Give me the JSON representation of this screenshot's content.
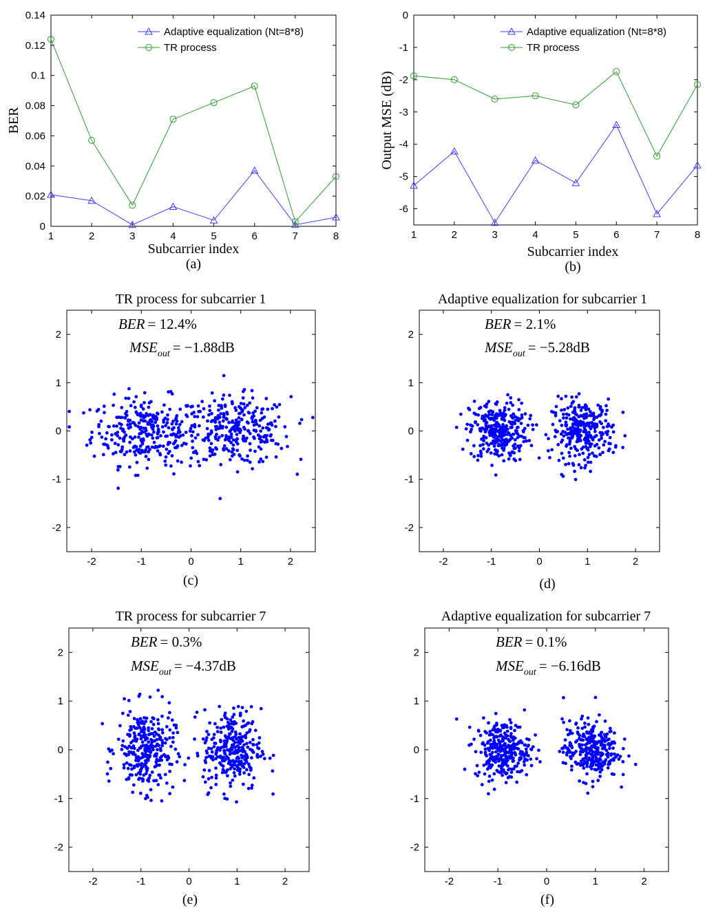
{
  "chart_data": [
    {
      "id": "a",
      "type": "line",
      "panel_label": "(a)",
      "xlabel": "Subcarrier index",
      "ylabel": "BER",
      "xlim": [
        1,
        8
      ],
      "ylim": [
        0,
        0.14
      ],
      "xticks": [
        "1",
        "2",
        "3",
        "4",
        "5",
        "6",
        "7",
        "8"
      ],
      "yticks": [
        "0",
        "0.02",
        "0.04",
        "0.06",
        "0.08",
        "0.1",
        "0.12",
        "0.14"
      ],
      "x": [
        1,
        2,
        3,
        4,
        5,
        6,
        7,
        8
      ],
      "legend_position": "top-right",
      "series": [
        {
          "name": "Adaptive equalization (Nt=8*8)",
          "color": "#3c3cff",
          "marker": "triangle",
          "values": [
            0.021,
            0.017,
            0.001,
            0.013,
            0.004,
            0.037,
            0.001,
            0.006
          ]
        },
        {
          "name": "TR process",
          "color": "#2e9a2e",
          "marker": "circle",
          "values": [
            0.124,
            0.057,
            0.014,
            0.071,
            0.082,
            0.093,
            0.003,
            0.033
          ]
        }
      ]
    },
    {
      "id": "b",
      "type": "line",
      "panel_label": "(b)",
      "xlabel": "Subcarrier index",
      "ylabel": "Output MSE (dB)",
      "xlim": [
        1,
        8
      ],
      "ylim": [
        -6.5,
        0
      ],
      "xticks": [
        "1",
        "2",
        "3",
        "4",
        "5",
        "6",
        "7",
        "8"
      ],
      "yticks": [
        "0",
        "-1",
        "-2",
        "-3",
        "-4",
        "-5",
        "-6"
      ],
      "x": [
        1,
        2,
        3,
        4,
        5,
        6,
        7,
        8
      ],
      "legend_position": "top-right",
      "series": [
        {
          "name": "Adaptive equalization (Nt=8*8)",
          "color": "#3c3cff",
          "marker": "triangle",
          "values": [
            -5.28,
            -4.22,
            -6.43,
            -4.5,
            -5.2,
            -3.4,
            -6.16,
            -4.65
          ]
        },
        {
          "name": "TR process",
          "color": "#2e9a2e",
          "marker": "circle",
          "values": [
            -1.88,
            -2.0,
            -2.6,
            -2.5,
            -2.78,
            -1.75,
            -4.37,
            -2.15
          ]
        }
      ]
    },
    {
      "id": "c",
      "type": "scatter",
      "title": "TR process for subcarrier 1",
      "panel_label": "(c)",
      "ber_label": "BER",
      "ber_value": "= 12.4%",
      "mse_label": "MSE",
      "mse_sub": "out",
      "mse_value": "= −1.88dB",
      "xlim": [
        -2.5,
        2.5
      ],
      "ylim": [
        -2.5,
        2.5
      ],
      "xticks": [
        "-2",
        "-1",
        "0",
        "1",
        "2"
      ],
      "yticks": [
        "2",
        "1",
        "0",
        "-1",
        "-2"
      ],
      "color": "#0000ff",
      "clusters": [
        {
          "cx": -0.9,
          "cy": 0.0,
          "sx": 0.55,
          "sy": 0.35,
          "n": 300
        },
        {
          "cx": 0.9,
          "cy": 0.0,
          "sx": 0.55,
          "sy": 0.35,
          "n": 300
        }
      ]
    },
    {
      "id": "d",
      "type": "scatter",
      "title": "Adaptive equalization for subcarrier 1",
      "panel_label": "(d)",
      "ber_label": "BER",
      "ber_value": "= 2.1%",
      "mse_label": "MSE",
      "mse_sub": "out",
      "mse_value": "= −5.28dB",
      "xlim": [
        -2.5,
        2.5
      ],
      "ylim": [
        -2.5,
        2.5
      ],
      "xticks": [
        "-2",
        "-1",
        "0",
        "1",
        "2"
      ],
      "yticks": [
        "2",
        "1",
        "0",
        "-1",
        "-2"
      ],
      "color": "#0000ff",
      "clusters": [
        {
          "cx": -0.85,
          "cy": 0.0,
          "sx": 0.3,
          "sy": 0.32,
          "n": 300
        },
        {
          "cx": 0.9,
          "cy": 0.0,
          "sx": 0.32,
          "sy": 0.32,
          "n": 300
        }
      ]
    },
    {
      "id": "e",
      "type": "scatter",
      "title": "TR process for subcarrier 7",
      "panel_label": "(e)",
      "ber_label": "BER",
      "ber_value": "= 0.3%",
      "mse_label": "MSE",
      "mse_sub": "out",
      "mse_value": "= −4.37dB",
      "xlim": [
        -2.5,
        2.5
      ],
      "ylim": [
        -2.5,
        2.5
      ],
      "xticks": [
        "-2",
        "-1",
        "0",
        "1",
        "2"
      ],
      "yticks": [
        "2",
        "1",
        "0",
        "-1",
        "-2"
      ],
      "color": "#0000ff",
      "clusters": [
        {
          "cx": -0.9,
          "cy": 0.0,
          "sx": 0.3,
          "sy": 0.42,
          "n": 300
        },
        {
          "cx": 0.9,
          "cy": 0.0,
          "sx": 0.3,
          "sy": 0.42,
          "n": 300
        }
      ]
    },
    {
      "id": "f",
      "type": "scatter",
      "title": "Adaptive equalization for subcarrier 7",
      "panel_label": "(f)",
      "ber_label": "BER",
      "ber_value": "= 0.1%",
      "mse_label": "MSE",
      "mse_sub": "out",
      "mse_value": "= −6.16dB",
      "xlim": [
        -2.5,
        2.5
      ],
      "ylim": [
        -2.5,
        2.5
      ],
      "xticks": [
        "-2",
        "-1",
        "0",
        "1",
        "2"
      ],
      "yticks": [
        "2",
        "1",
        "0",
        "-1",
        "-2"
      ],
      "color": "#0000ff",
      "clusters": [
        {
          "cx": -0.9,
          "cy": 0.0,
          "sx": 0.28,
          "sy": 0.3,
          "n": 300
        },
        {
          "cx": 0.9,
          "cy": 0.0,
          "sx": 0.28,
          "sy": 0.3,
          "n": 300
        }
      ]
    }
  ]
}
